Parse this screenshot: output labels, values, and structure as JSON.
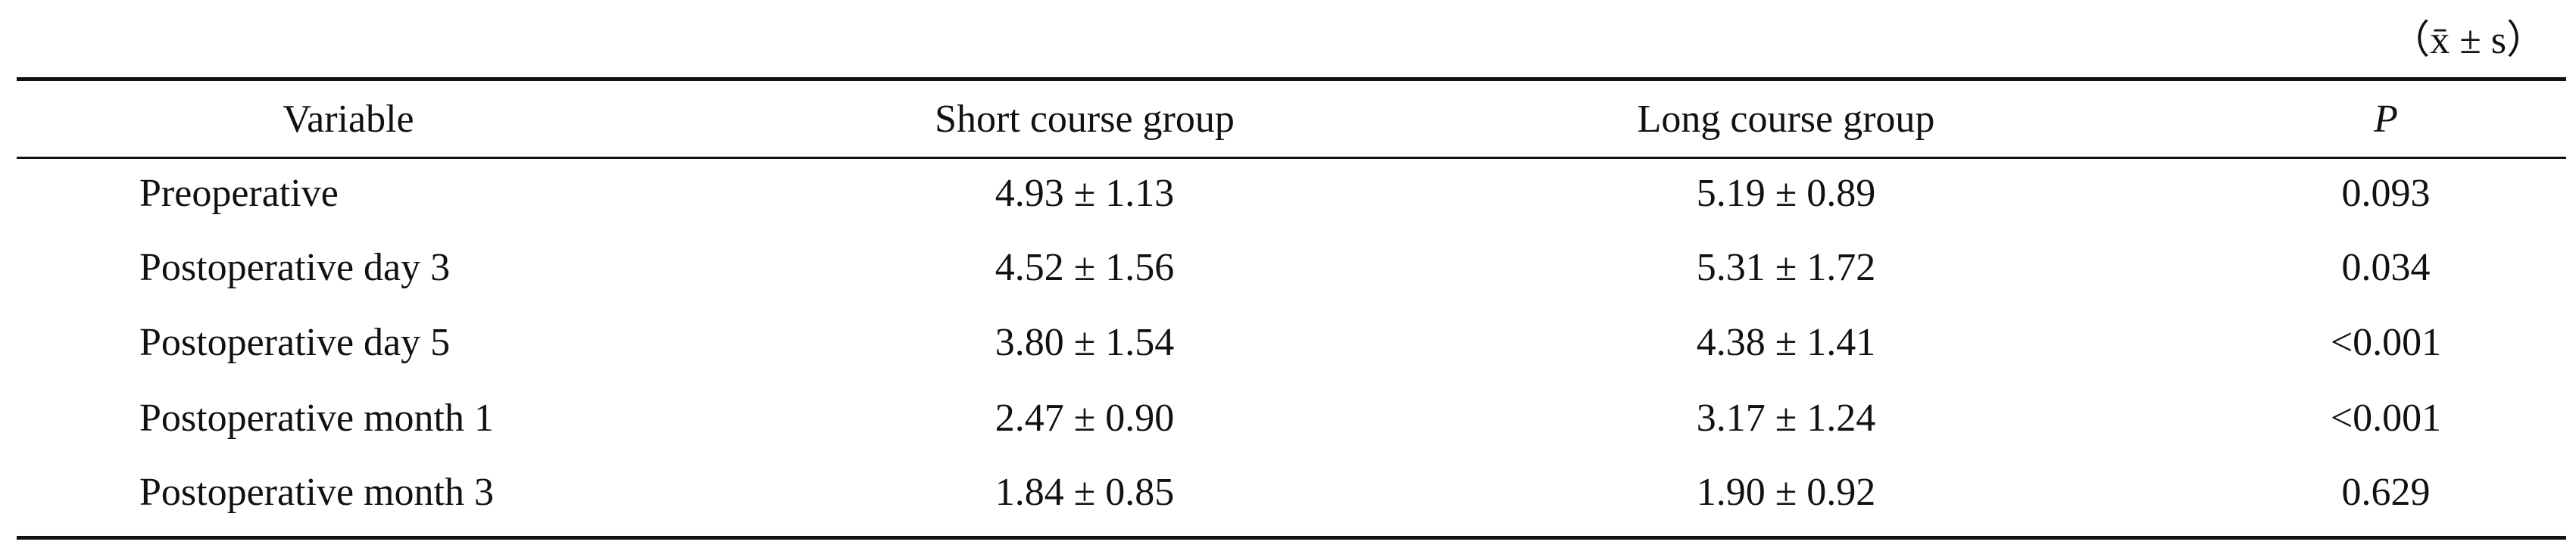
{
  "table": {
    "note": "（x̄ ± s）",
    "header": [
      "Variable",
      "Short course group",
      "Long course group",
      "P"
    ],
    "rows": [
      [
        "Preoperative",
        "4.93 ± 1.13",
        "5.19 ± 0.89",
        "0.093"
      ],
      [
        "Postoperative day 3",
        "4.52 ± 1.56",
        "5.31 ± 1.72",
        "0.034"
      ],
      [
        "Postoperative day 5",
        "3.80 ± 1.54",
        "4.38 ± 1.41",
        "<0.001"
      ],
      [
        "Postoperative month 1",
        "2.47 ± 0.90",
        "3.17 ± 1.24",
        "<0.001"
      ],
      [
        "Postoperative month 3",
        "1.84 ± 0.85",
        "1.90 ± 0.92",
        "0.629"
      ]
    ]
  }
}
